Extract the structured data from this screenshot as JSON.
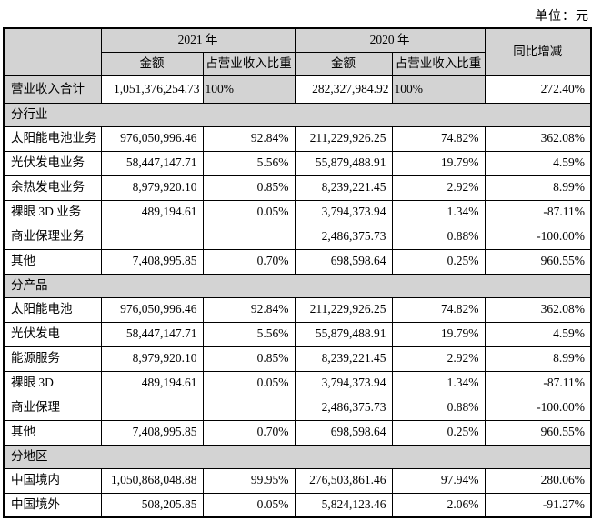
{
  "page": {
    "unit_label": "单位：元"
  },
  "colors": {
    "header_bg": "#d3d3d3",
    "section_bg": "#d3d3d3",
    "border": "#000000",
    "text": "#000000"
  },
  "table": {
    "headers": {
      "year_2021": "2021 年",
      "year_2020": "2020 年",
      "amount_2021": "金额",
      "pct_2021": "占营业收入比重",
      "amount_2020": "金额",
      "pct_2020": "占营业收入比重",
      "yoy": "同比增减"
    },
    "total_row": {
      "label": "营业收入合计",
      "amount_2021": "1,051,376,254.73",
      "pct_2021": "100%",
      "amount_2020": "282,327,984.92",
      "pct_2020": "100%",
      "yoy": "272.40%"
    },
    "sections": [
      {
        "title": "分行业",
        "rows": [
          {
            "label": "太阳能电池业务",
            "amount_2021": "976,050,996.46",
            "pct_2021": "92.84%",
            "amount_2020": "211,229,926.25",
            "pct_2020": "74.82%",
            "yoy": "362.08%"
          },
          {
            "label": "光伏发电业务",
            "amount_2021": "58,447,147.71",
            "pct_2021": "5.56%",
            "amount_2020": "55,879,488.91",
            "pct_2020": "19.79%",
            "yoy": "4.59%"
          },
          {
            "label": "余热发电业务",
            "amount_2021": "8,979,920.10",
            "pct_2021": "0.85%",
            "amount_2020": "8,239,221.45",
            "pct_2020": "2.92%",
            "yoy": "8.99%"
          },
          {
            "label": "裸眼 3D 业务",
            "amount_2021": "489,194.61",
            "pct_2021": "0.05%",
            "amount_2020": "3,794,373.94",
            "pct_2020": "1.34%",
            "yoy": "-87.11%"
          },
          {
            "label": "商业保理业务",
            "amount_2021": "",
            "pct_2021": "",
            "amount_2020": "2,486,375.73",
            "pct_2020": "0.88%",
            "yoy": "-100.00%"
          },
          {
            "label": "其他",
            "amount_2021": "7,408,995.85",
            "pct_2021": "0.70%",
            "amount_2020": "698,598.64",
            "pct_2020": "0.25%",
            "yoy": "960.55%"
          }
        ]
      },
      {
        "title": "分产品",
        "rows": [
          {
            "label": "太阳能电池",
            "amount_2021": "976,050,996.46",
            "pct_2021": "92.84%",
            "amount_2020": "211,229,926.25",
            "pct_2020": "74.82%",
            "yoy": "362.08%"
          },
          {
            "label": "光伏发电",
            "amount_2021": "58,447,147.71",
            "pct_2021": "5.56%",
            "amount_2020": "55,879,488.91",
            "pct_2020": "19.79%",
            "yoy": "4.59%"
          },
          {
            "label": "能源服务",
            "amount_2021": "8,979,920.10",
            "pct_2021": "0.85%",
            "amount_2020": "8,239,221.45",
            "pct_2020": "2.92%",
            "yoy": "8.99%"
          },
          {
            "label": "裸眼 3D",
            "amount_2021": "489,194.61",
            "pct_2021": "0.05%",
            "amount_2020": "3,794,373.94",
            "pct_2020": "1.34%",
            "yoy": "-87.11%"
          },
          {
            "label": "商业保理",
            "amount_2021": "",
            "pct_2021": "",
            "amount_2020": "2,486,375.73",
            "pct_2020": "0.88%",
            "yoy": "-100.00%"
          },
          {
            "label": "其他",
            "amount_2021": "7,408,995.85",
            "pct_2021": "0.70%",
            "amount_2020": "698,598.64",
            "pct_2020": "0.25%",
            "yoy": "960.55%"
          }
        ]
      },
      {
        "title": "分地区",
        "rows": [
          {
            "label": "中国境内",
            "amount_2021": "1,050,868,048.88",
            "pct_2021": "99.95%",
            "amount_2020": "276,503,861.46",
            "pct_2020": "97.94%",
            "yoy": "280.06%"
          },
          {
            "label": "中国境外",
            "amount_2021": "508,205.85",
            "pct_2021": "0.05%",
            "amount_2020": "5,824,123.46",
            "pct_2020": "2.06%",
            "yoy": "-91.27%"
          }
        ]
      }
    ]
  }
}
